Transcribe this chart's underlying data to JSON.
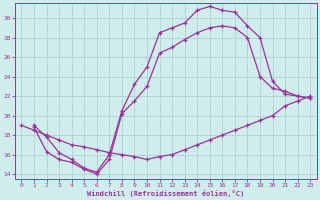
{
  "xlabel": "Windchill (Refroidissement éolien,°C)",
  "bg_color": "#d0ecec",
  "line_color": "#993399",
  "grid_color": "#aad4d4",
  "xlim": [
    -0.5,
    23.5
  ],
  "ylim": [
    13.5,
    31.5
  ],
  "yticks": [
    14,
    16,
    18,
    20,
    22,
    24,
    26,
    28,
    30
  ],
  "xticks": [
    0,
    1,
    2,
    3,
    4,
    5,
    6,
    7,
    8,
    9,
    10,
    11,
    12,
    13,
    14,
    15,
    16,
    17,
    18,
    19,
    20,
    21,
    22,
    23
  ],
  "line1_x": [
    1,
    2,
    3,
    4,
    5,
    6,
    7,
    8,
    9,
    10,
    11,
    12,
    13,
    14,
    15,
    16,
    17,
    18,
    19,
    20,
    21,
    22,
    23
  ],
  "line1_y": [
    19.0,
    17.8,
    16.2,
    15.5,
    14.6,
    14.2,
    16.0,
    20.5,
    23.2,
    25.0,
    28.5,
    29.0,
    29.5,
    30.8,
    31.2,
    30.8,
    30.6,
    29.2,
    28.0,
    23.5,
    22.2,
    22.0,
    21.8
  ],
  "line2_x": [
    1,
    2,
    3,
    4,
    5,
    6,
    7,
    8,
    9,
    10,
    11,
    12,
    13,
    14,
    15,
    16,
    17,
    18,
    19,
    20,
    21,
    22,
    23
  ],
  "line2_y": [
    18.8,
    16.3,
    15.5,
    15.2,
    14.5,
    14.0,
    15.5,
    20.2,
    21.5,
    23.0,
    26.4,
    27.0,
    27.8,
    28.5,
    29.0,
    29.2,
    29.0,
    28.0,
    24.0,
    22.8,
    22.5,
    22.0,
    21.8
  ],
  "line3_x": [
    0,
    1,
    2,
    3,
    4,
    5,
    6,
    7,
    8,
    9,
    10,
    11,
    12,
    13,
    14,
    15,
    16,
    17,
    18,
    19,
    20,
    21,
    22,
    23
  ],
  "line3_y": [
    19.0,
    18.5,
    18.0,
    17.5,
    17.0,
    16.8,
    16.5,
    16.2,
    16.0,
    15.8,
    15.5,
    15.8,
    16.0,
    16.5,
    17.0,
    17.5,
    18.0,
    18.5,
    19.0,
    19.5,
    20.0,
    21.0,
    21.5,
    22.0
  ]
}
